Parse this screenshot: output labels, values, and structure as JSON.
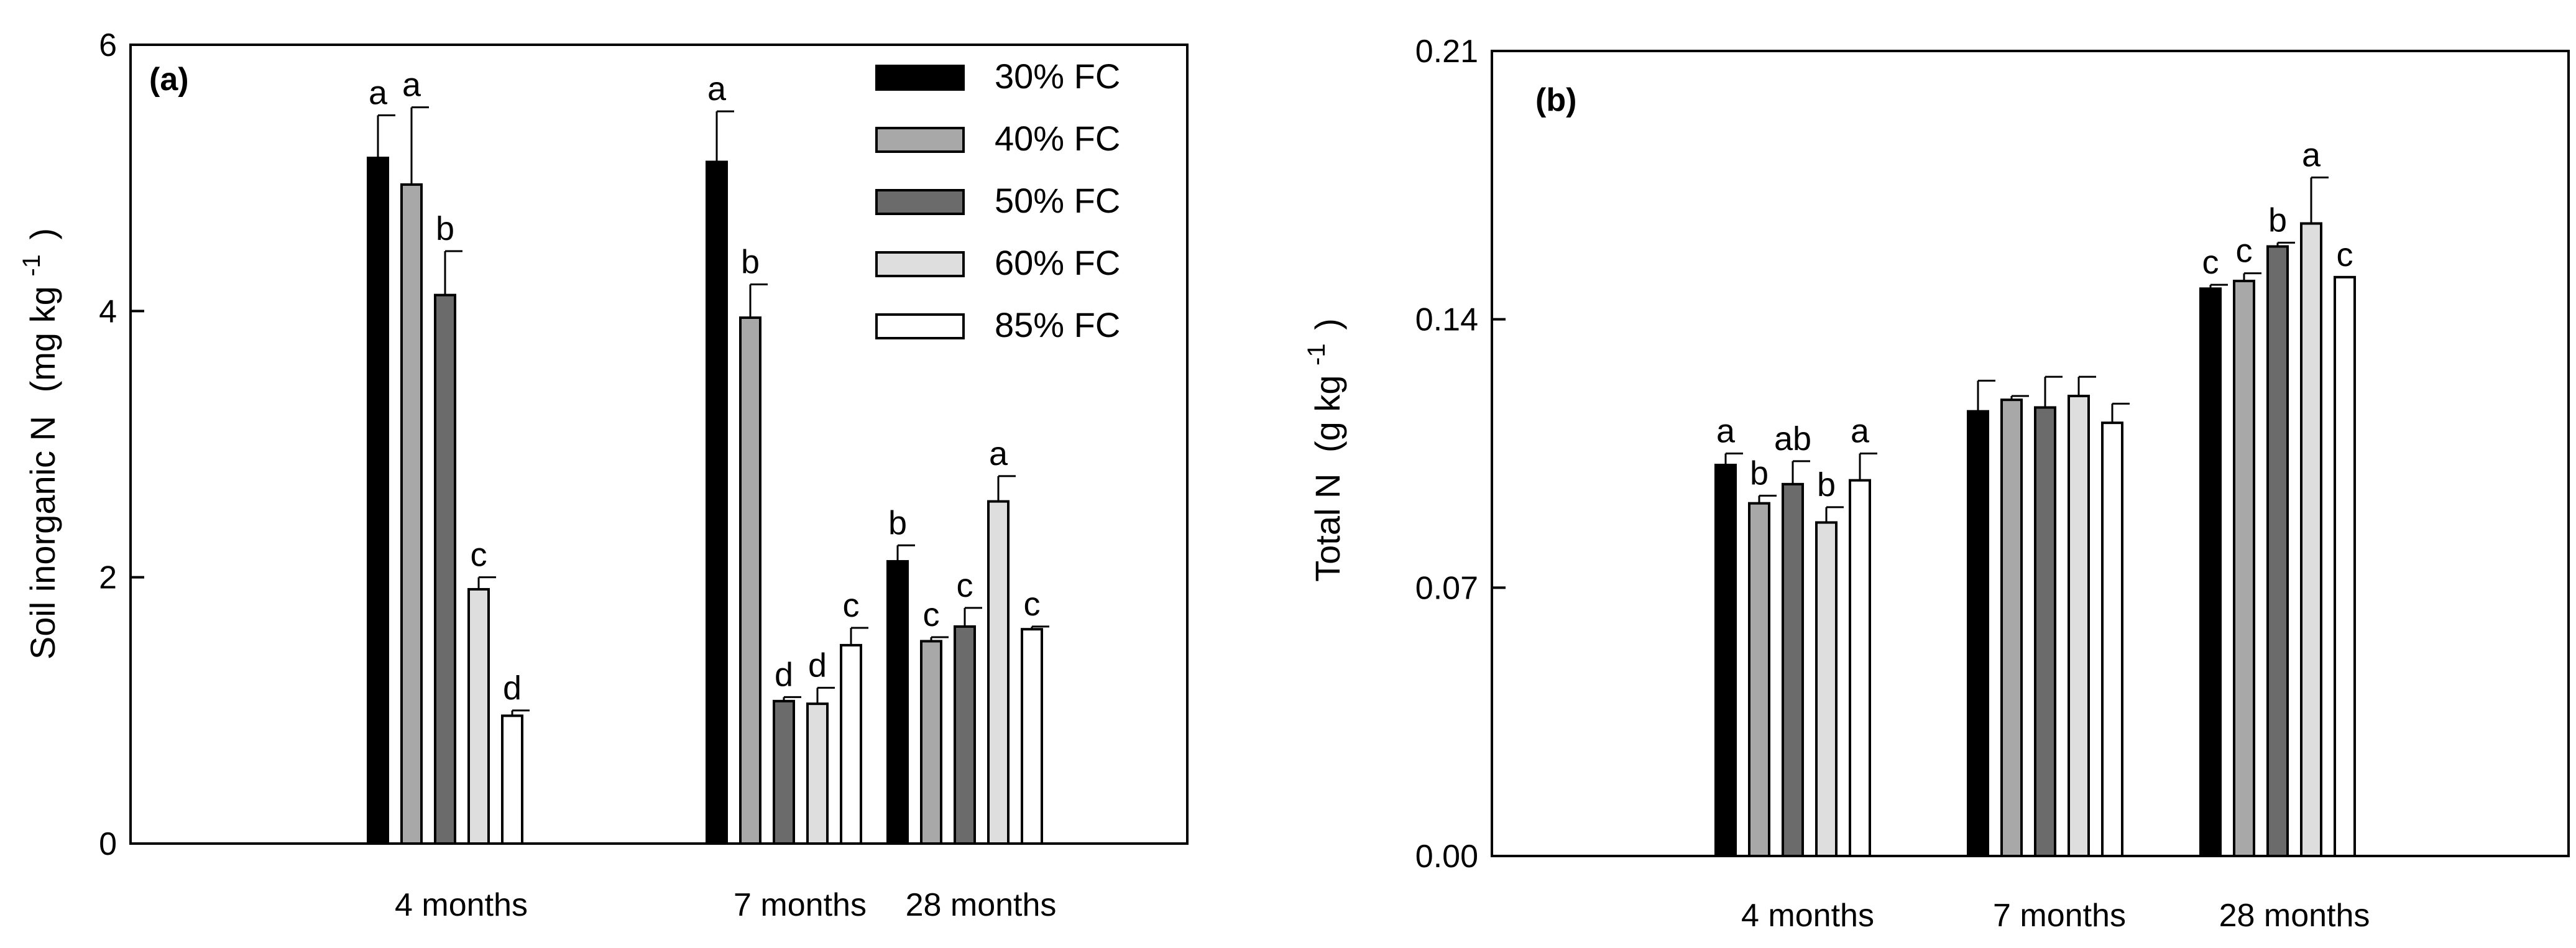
{
  "chart_data": [
    {
      "type": "bar",
      "panel_label": "(a)",
      "ylabel": "Soil inorganic N",
      "yunit": {
        "open": "(mg kg",
        "exp": "-1",
        "close": ")"
      },
      "ylim": [
        0,
        6
      ],
      "yticks": [
        "0",
        "2",
        "4",
        "6"
      ],
      "categories": [
        "4 months",
        "7 months",
        "28 months"
      ],
      "legend_position": "top-right",
      "series": [
        {
          "name": "30% FC",
          "color": "#000000",
          "values": [
            5.15,
            5.12,
            2.12
          ],
          "errors": [
            0.32,
            0.38,
            0.12
          ],
          "letters": [
            "a",
            "a",
            "b"
          ]
        },
        {
          "name": "40% FC",
          "color": "#a8a8a8",
          "values": [
            4.95,
            3.95,
            1.52
          ],
          "errors": [
            0.58,
            0.25,
            0.03
          ],
          "letters": [
            "a",
            "b",
            "c"
          ]
        },
        {
          "name": "50% FC",
          "color": "#6b6b6b",
          "values": [
            4.12,
            1.07,
            1.63
          ],
          "errors": [
            0.33,
            0.03,
            0.14
          ],
          "letters": [
            "b",
            "d",
            "c"
          ]
        },
        {
          "name": "60% FC",
          "color": "#dedede",
          "values": [
            1.91,
            1.05,
            2.57
          ],
          "errors": [
            0.09,
            0.12,
            0.19
          ],
          "letters": [
            "c",
            "d",
            "a"
          ]
        },
        {
          "name": "85% FC",
          "color": "#ffffff",
          "values": [
            0.96,
            1.49,
            1.61
          ],
          "errors": [
            0.04,
            0.13,
            0.02
          ],
          "letters": [
            "d",
            "c",
            "c"
          ]
        }
      ]
    },
    {
      "type": "bar",
      "panel_label": "(b)",
      "ylabel": "Total N",
      "yunit": {
        "open": "(g kg",
        "exp": "-1",
        "close": ")"
      },
      "ylim": [
        0,
        0.21
      ],
      "yticks": [
        "0.00",
        "0.07",
        "0.14",
        "0.21"
      ],
      "categories": [
        "4 months",
        "7 months",
        "28 months"
      ],
      "series": [
        {
          "name": "30% FC",
          "color": "#000000",
          "values": [
            0.102,
            0.116,
            0.148
          ],
          "errors": [
            0.003,
            0.008,
            0.001
          ],
          "letters": [
            "a",
            "",
            "c"
          ]
        },
        {
          "name": "40% FC",
          "color": "#a8a8a8",
          "values": [
            0.092,
            0.119,
            0.15
          ],
          "errors": [
            0.002,
            0.001,
            0.002
          ],
          "letters": [
            "b",
            "",
            "c"
          ]
        },
        {
          "name": "50% FC",
          "color": "#6b6b6b",
          "values": [
            0.097,
            0.117,
            0.159
          ],
          "errors": [
            0.006,
            0.008,
            0.001
          ],
          "letters": [
            "ab",
            "",
            "b"
          ]
        },
        {
          "name": "60% FC",
          "color": "#dedede",
          "values": [
            0.087,
            0.12,
            0.165
          ],
          "errors": [
            0.004,
            0.005,
            0.012
          ],
          "letters": [
            "b",
            "",
            "a"
          ]
        },
        {
          "name": "85% FC",
          "color": "#ffffff",
          "values": [
            0.098,
            0.113,
            0.151
          ],
          "errors": [
            0.007,
            0.005,
            0.0
          ],
          "letters": [
            "a",
            "",
            "c"
          ]
        }
      ]
    }
  ]
}
